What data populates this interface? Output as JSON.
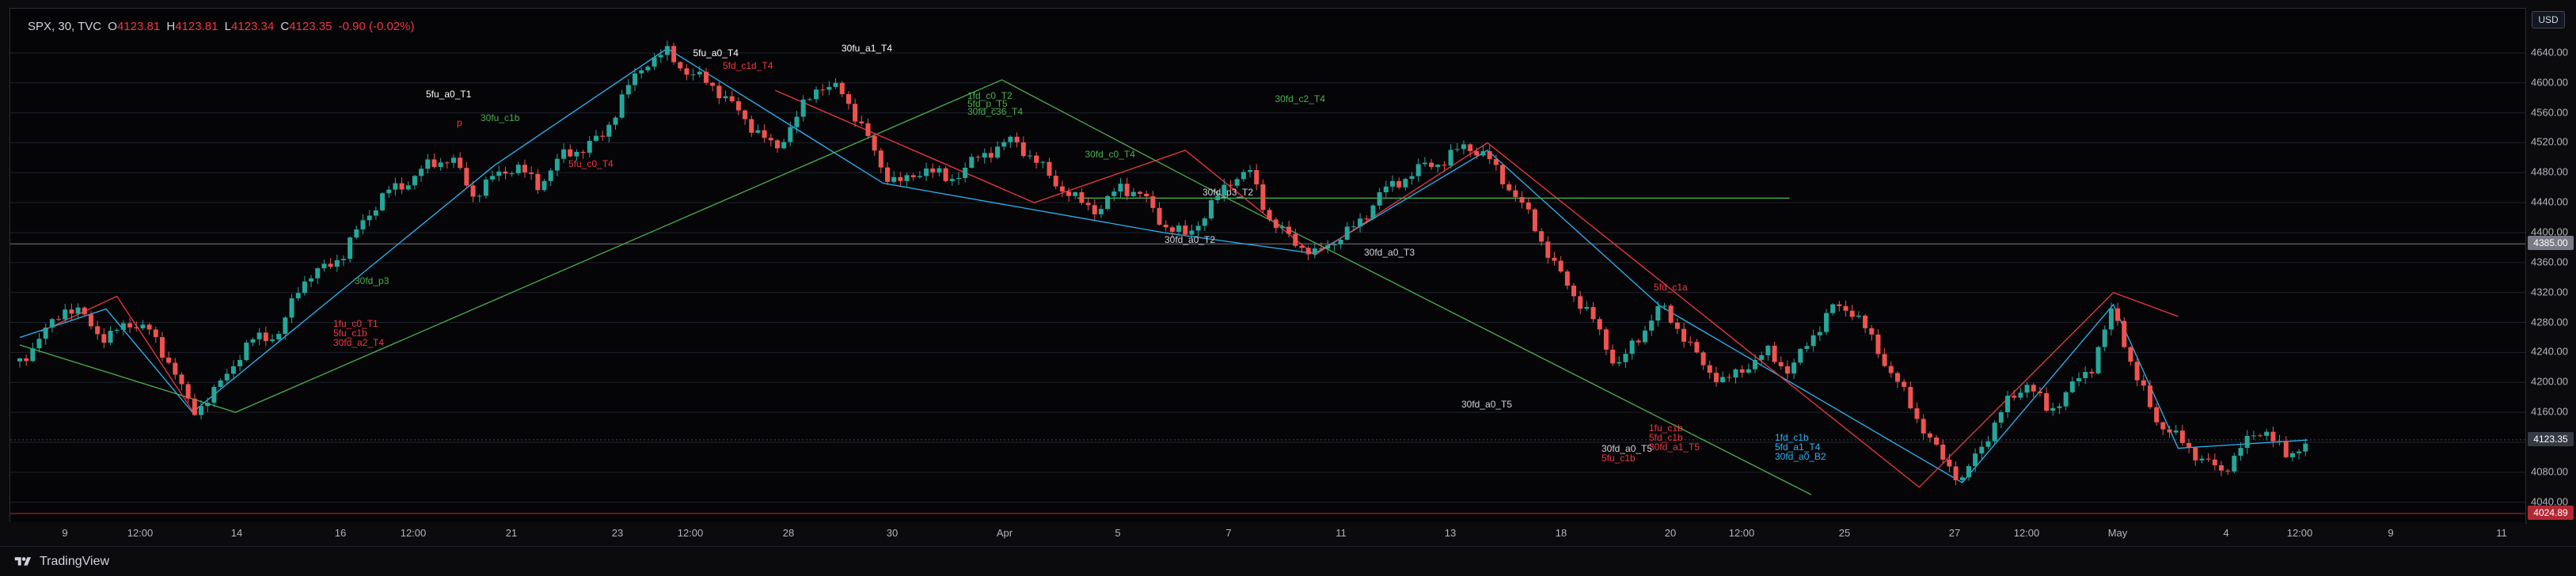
{
  "header": {
    "symbol": "SPX, 30, TVC",
    "o_label": "O",
    "o_value": "4123.81",
    "h_label": "H",
    "h_value": "4123.81",
    "l_label": "L",
    "l_value": "4123.34",
    "c_label": "C",
    "c_value": "4123.35",
    "change": "-0.90 (-0.02%)"
  },
  "currency_button": "USD",
  "footer": {
    "brand": "TradingView"
  },
  "colors": {
    "up": "#26a69a",
    "down": "#ef5350",
    "green": "#4caf50",
    "red": "#f23645",
    "cyan": "#29b6f6",
    "blue": "#2962ff",
    "grid": "#1e222d"
  },
  "chart_data": {
    "type": "candlestick",
    "symbol": "SPX",
    "interval": "30",
    "ylim": [
      4024.89,
      4680
    ],
    "y_ticks": [
      "4640.00",
      "4600.00",
      "4560.00",
      "4520.00",
      "4480.00",
      "4440.00",
      "4400.00",
      "4360.00",
      "4320.00",
      "4280.00",
      "4240.00",
      "4200.00",
      "4160.00",
      "4120.00",
      "4080.00",
      "4040.00"
    ],
    "price_tags": [
      {
        "value": "4385.00",
        "color": "#787b86"
      },
      {
        "value": "4123.35",
        "color": "#2a2e39"
      },
      {
        "value": "4024.89",
        "color": "#b22833"
      }
    ],
    "x_ticks": [
      "9",
      "12:00",
      "14",
      "16",
      "12:00",
      "21",
      "23",
      "12:00",
      "28",
      "30",
      "Apr",
      "5",
      "7",
      "11",
      "13",
      "18",
      "20",
      "12:00",
      "25",
      "27",
      "12:00",
      "May",
      "4",
      "12:00",
      "9",
      "11"
    ],
    "price_path": [
      [
        0,
        4228
      ],
      [
        10,
        4260
      ],
      [
        20,
        4300
      ],
      [
        30,
        4288
      ],
      [
        40,
        4255
      ],
      [
        50,
        4282
      ],
      [
        60,
        4268
      ],
      [
        70,
        4224
      ],
      [
        80,
        4160
      ],
      [
        90,
        4186
      ],
      [
        100,
        4230
      ],
      [
        110,
        4262
      ],
      [
        120,
        4262
      ],
      [
        130,
        4334
      ],
      [
        140,
        4350
      ],
      [
        150,
        4372
      ],
      [
        160,
        4420
      ],
      [
        170,
        4454
      ],
      [
        180,
        4468
      ],
      [
        190,
        4492
      ],
      [
        200,
        4500
      ],
      [
        210,
        4450
      ],
      [
        220,
        4475
      ],
      [
        230,
        4490
      ],
      [
        240,
        4462
      ],
      [
        250,
        4500
      ],
      [
        260,
        4512
      ],
      [
        270,
        4528
      ],
      [
        280,
        4586
      ],
      [
        290,
        4628
      ],
      [
        300,
        4640
      ],
      [
        310,
        4612
      ],
      [
        320,
        4600
      ],
      [
        330,
        4570
      ],
      [
        340,
        4540
      ],
      [
        350,
        4510
      ],
      [
        360,
        4555
      ],
      [
        370,
        4598
      ],
      [
        380,
        4590
      ],
      [
        390,
        4544
      ],
      [
        400,
        4480
      ],
      [
        410,
        4466
      ],
      [
        420,
        4488
      ],
      [
        430,
        4468
      ],
      [
        440,
        4492
      ],
      [
        450,
        4510
      ],
      [
        460,
        4524
      ],
      [
        470,
        4498
      ],
      [
        480,
        4466
      ],
      [
        490,
        4442
      ],
      [
        500,
        4430
      ],
      [
        510,
        4462
      ],
      [
        520,
        4450
      ],
      [
        530,
        4410
      ],
      [
        540,
        4396
      ],
      [
        550,
        4426
      ],
      [
        560,
        4470
      ],
      [
        570,
        4480
      ],
      [
        580,
        4412
      ],
      [
        590,
        4390
      ],
      [
        600,
        4370
      ],
      [
        610,
        4392
      ],
      [
        620,
        4410
      ],
      [
        630,
        4452
      ],
      [
        640,
        4470
      ],
      [
        650,
        4488
      ],
      [
        660,
        4496
      ],
      [
        670,
        4518
      ],
      [
        680,
        4500
      ],
      [
        690,
        4460
      ],
      [
        700,
        4420
      ],
      [
        710,
        4360
      ],
      [
        720,
        4318
      ],
      [
        730,
        4278
      ],
      [
        740,
        4220
      ],
      [
        750,
        4260
      ],
      [
        760,
        4302
      ],
      [
        770,
        4266
      ],
      [
        780,
        4222
      ],
      [
        790,
        4200
      ],
      [
        800,
        4222
      ],
      [
        810,
        4240
      ],
      [
        820,
        4214
      ],
      [
        830,
        4260
      ],
      [
        840,
        4300
      ],
      [
        850,
        4296
      ],
      [
        860,
        4246
      ],
      [
        870,
        4200
      ],
      [
        880,
        4148
      ],
      [
        890,
        4100
      ],
      [
        900,
        4070
      ],
      [
        910,
        4120
      ],
      [
        920,
        4170
      ],
      [
        930,
        4200
      ],
      [
        940,
        4160
      ],
      [
        950,
        4192
      ],
      [
        960,
        4222
      ],
      [
        970,
        4300
      ],
      [
        980,
        4210
      ],
      [
        990,
        4150
      ],
      [
        1000,
        4124
      ],
      [
        1010,
        4100
      ],
      [
        1020,
        4080
      ],
      [
        1030,
        4116
      ],
      [
        1040,
        4140
      ],
      [
        1050,
        4100
      ],
      [
        1060,
        4123
      ]
    ],
    "annotations": [
      {
        "text": "5fu_a0_T1",
        "color": "#ffffff"
      },
      {
        "text": "30fu_c1b",
        "color": "#4caf50"
      },
      {
        "text": "p",
        "color": "#f23645"
      },
      {
        "text": "5fu_c0_T4",
        "color": "#f23645"
      },
      {
        "text": "5fu_a0_T4",
        "color": "#ffffff"
      },
      {
        "text": "5fd_c1d_T4",
        "color": "#f23645"
      },
      {
        "text": "30fu_a1_T4",
        "color": "#ffffff"
      },
      {
        "text": "1fd_c0_T2",
        "color": "#4caf50"
      },
      {
        "text": "5fd_p_T5",
        "color": "#4caf50"
      },
      {
        "text": "30fd_c36_T4",
        "color": "#4caf50"
      },
      {
        "text": "30fd_c0_T4",
        "color": "#4caf50"
      },
      {
        "text": "30fd_c2_T4",
        "color": "#4caf50"
      },
      {
        "text": "30fd_p3_T2",
        "color": "#d1d4dc"
      },
      {
        "text": "30fd_a0_T2",
        "color": "#d1d4dc"
      },
      {
        "text": "30fd_p3",
        "color": "#4caf50"
      },
      {
        "text": "1fu_c0_T1",
        "color": "#f23645"
      },
      {
        "text": "5fu_c1b",
        "color": "#f23645"
      },
      {
        "text": "30fd_a2_T4",
        "color": "#f23645"
      },
      {
        "text": "30fd_a0_T3",
        "color": "#d1d4dc"
      },
      {
        "text": "30fd_a0_T5",
        "color": "#d1d4dc"
      },
      {
        "text": "30fd_a0_T5",
        "color": "#d1d4dc"
      },
      {
        "text": "5fu_c1b",
        "color": "#f23645"
      },
      {
        "text": "5fd_c1a",
        "color": "#f23645"
      },
      {
        "text": "1fu_c1b",
        "color": "#f23645"
      },
      {
        "text": "5fd_c1b",
        "color": "#f23645"
      },
      {
        "text": "30fd_a1_T5",
        "color": "#f23645"
      },
      {
        "text": "1fd_c1b",
        "color": "#29b6f6"
      },
      {
        "text": "5fd_a1_T4",
        "color": "#29b6f6"
      },
      {
        "text": "30fd_a0_B2",
        "color": "#29b6f6"
      }
    ]
  }
}
